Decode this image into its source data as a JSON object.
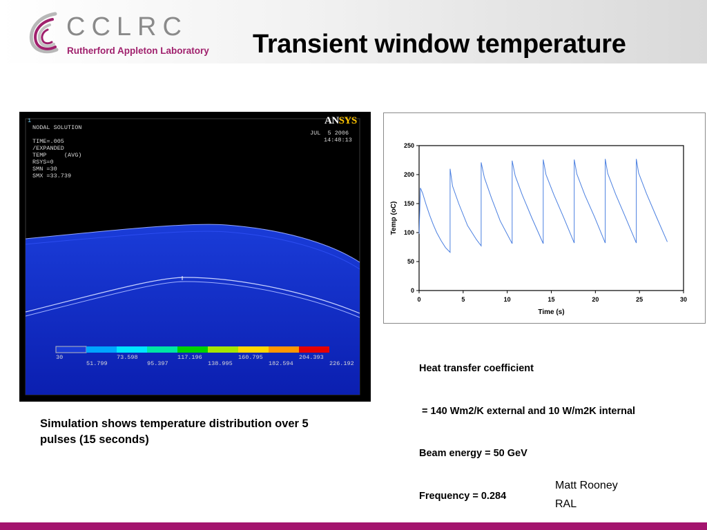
{
  "header": {
    "logo_name": "CCLRC",
    "logo_sub": "Rutherford Appleton Laboratory",
    "title": "Transient window temperature",
    "brand_color": "#a3146e"
  },
  "simulation": {
    "step_number": "1",
    "lines": [
      "NODAL SOLUTION",
      "",
      "TIME=.005",
      "/EXPANDED",
      "TEMP     (AVG)",
      "RSYS=0",
      "SMN =30",
      "SMX =33.739"
    ],
    "date": "JUL  5 2006",
    "time": "14:48:13",
    "ansys_logo": "ANSYS",
    "legend_top": [
      "30",
      "73.598",
      "117.196",
      "160.795",
      "204.393"
    ],
    "legend_bottom": [
      "51.799",
      "95.397",
      "138.995",
      "182.594",
      "226.192"
    ],
    "legend_colors": [
      "#ffffff",
      "#00a5ff",
      "#00e6ff",
      "#00e6a5",
      "#00d200",
      "#a5e600",
      "#ffd700",
      "#ff9600",
      "#e60000"
    ]
  },
  "chart_data": {
    "type": "line",
    "title": "",
    "xlabel": "Time (s)",
    "ylabel": "Temp (oC)",
    "xlim": [
      0,
      30
    ],
    "ylim": [
      0,
      250
    ],
    "xticks": [
      0,
      5,
      10,
      15,
      20,
      25,
      30
    ],
    "yticks": [
      0,
      50,
      100,
      150,
      200,
      250
    ],
    "grid": false,
    "line_color": "#4a7fe0",
    "series": [
      {
        "name": "",
        "x": [
          0.0,
          0.15,
          0.4,
          0.8,
          1.2,
          1.6,
          2.0,
          2.5,
          3.0,
          3.52,
          3.52,
          3.8,
          4.5,
          5.5,
          6.5,
          7.04,
          7.04,
          7.4,
          8.2,
          9.2,
          10.56,
          10.56,
          10.9,
          11.7,
          12.8,
          14.08,
          14.08,
          14.4,
          15.3,
          16.4,
          17.6,
          17.6,
          17.9,
          18.8,
          19.9,
          21.12,
          21.12,
          21.4,
          22.3,
          23.4,
          24.64,
          24.64,
          24.9,
          25.8,
          26.9,
          28.16
        ],
        "y": [
          98,
          177,
          168,
          148,
          130,
          114,
          100,
          86,
          74,
          66,
          210,
          180,
          150,
          112,
          88,
          77,
          221,
          195,
          160,
          120,
          81,
          224,
          198,
          165,
          125,
          81,
          226,
          200,
          165,
          126,
          82,
          226,
          201,
          165,
          127,
          82,
          227,
          202,
          166,
          127,
          82,
          227,
          203,
          167,
          128,
          84
        ]
      }
    ]
  },
  "info": {
    "lines": [
      "Heat transfer coefficient",
      " = 140 Wm2/K external and 10 W/m2K internal",
      "Beam energy = 50 GeV",
      "Frequency = 0.284"
    ]
  },
  "caption": "Simulation shows temperature distribution over 5 pulses (15 seconds)",
  "author": {
    "name": "Matt Rooney",
    "org": "RAL"
  }
}
